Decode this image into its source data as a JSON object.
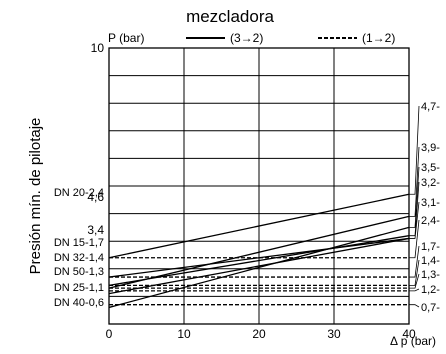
{
  "chart_data": {
    "type": "line",
    "title": "mezcladora",
    "ylabel": "Presión mín. de pilotaje",
    "y_axis_unit": "P (bar)",
    "xlabel": "Δ p (bar)",
    "xlim": [
      0,
      40
    ],
    "ylim": [
      0,
      10
    ],
    "x_ticks": [
      0,
      10,
      20,
      30,
      40
    ],
    "y_tick_labels": [
      "10",
      "4,6",
      "3,4"
    ],
    "y_tick_positions": [
      10,
      4.6,
      3.4
    ],
    "grid": true,
    "legend_position": "top",
    "legend": [
      {
        "label": "(3→2)",
        "style": "solid"
      },
      {
        "label": "(1→2)",
        "style": "dashed"
      }
    ],
    "solid_lines": [
      {
        "start": 2.4,
        "end": 4.7,
        "left_label": "DN 20-2,4",
        "right_label": "4,7-"
      },
      {
        "start": 1.3,
        "end": 3.9,
        "left_label": "DN 50-1,3",
        "right_label": "3,9-"
      },
      {
        "start": 0.6,
        "end": 3.5,
        "left_label": "DN 40-0,6",
        "right_label": "3,5-"
      },
      {
        "start": 1.4,
        "end": 3.2,
        "left_label": "DN 32-1,4",
        "right_label": "3,2-"
      },
      {
        "start": 1.7,
        "end": 3.1,
        "left_label": "DN 15-1,7",
        "right_label": "3,1-"
      },
      {
        "start": 1.1,
        "end": 3.1,
        "left_label": "DN 25-1,1",
        "right_label": ""
      }
    ],
    "dashed_lines": [
      {
        "value": 2.4,
        "right_label": "2,4-"
      },
      {
        "value": 1.7,
        "right_label": "1,7-"
      },
      {
        "value": 1.4,
        "right_label": "1,4-"
      },
      {
        "value": 1.3,
        "right_label": "1,3-"
      },
      {
        "value": 1.2,
        "right_label": "1,2-"
      },
      {
        "value": 0.7,
        "right_label": "0,7-"
      }
    ]
  }
}
